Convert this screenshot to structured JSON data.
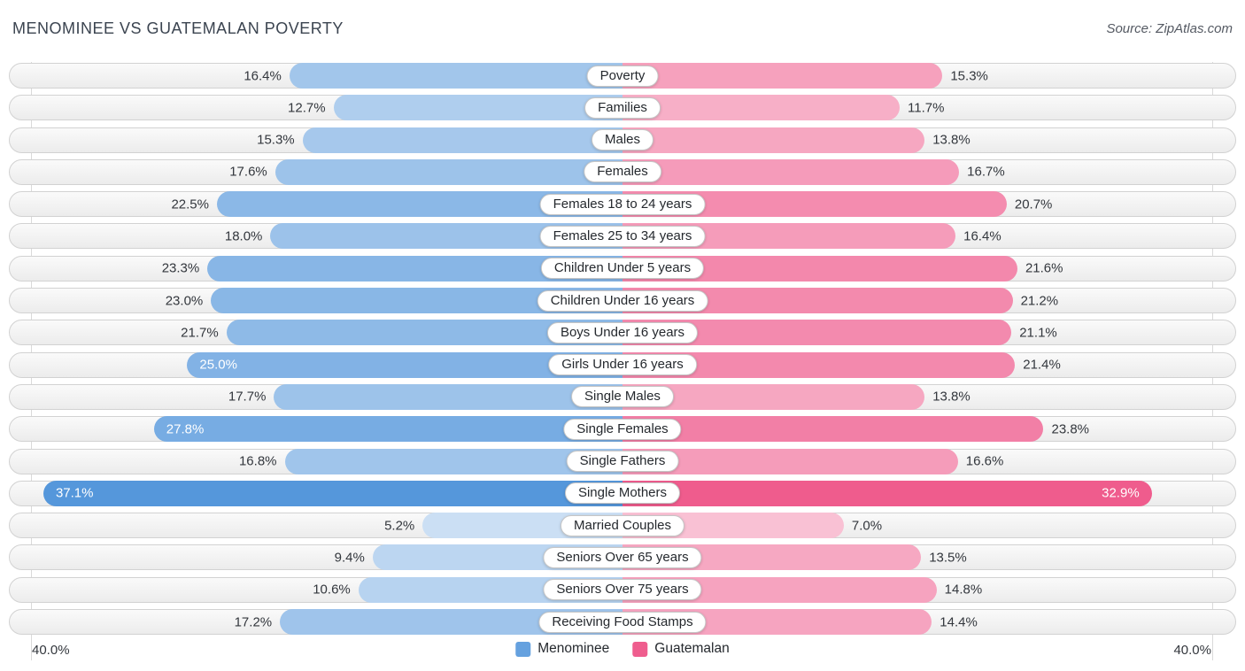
{
  "header": {
    "title": "MENOMINEE VS GUATEMALAN POVERTY",
    "source": "Source: ZipAtlas.com"
  },
  "chart_data": {
    "type": "bar",
    "variant": "bidirectional-tornado",
    "title": "MENOMINEE VS GUATEMALAN POVERTY",
    "value_suffix": "%",
    "axis": {
      "max": 40,
      "left_edge_label": "40.0%",
      "right_edge_label": "40.0%"
    },
    "legend_position": "bottom-center",
    "categories": [
      "Poverty",
      "Families",
      "Males",
      "Females",
      "Females 18 to 24 years",
      "Females 25 to 34 years",
      "Children Under 5 years",
      "Children Under 16 years",
      "Boys Under 16 years",
      "Girls Under 16 years",
      "Single Males",
      "Single Females",
      "Single Fathers",
      "Single Mothers",
      "Married Couples",
      "Seniors Over 65 years",
      "Seniors Over 75 years",
      "Receiving Food Stamps"
    ],
    "series": [
      {
        "name": "Menominee",
        "side": "left",
        "base_color": "#4a90d9",
        "values": [
          16.4,
          12.7,
          15.3,
          17.6,
          22.5,
          18.0,
          23.3,
          23.0,
          21.7,
          25.0,
          17.7,
          27.8,
          16.8,
          37.1,
          5.2,
          9.4,
          10.6,
          17.2
        ]
      },
      {
        "name": "Guatemalan",
        "side": "right",
        "base_color": "#ec407a",
        "values": [
          15.3,
          11.7,
          13.8,
          16.7,
          20.7,
          16.4,
          21.6,
          21.2,
          21.1,
          21.4,
          13.8,
          23.8,
          16.6,
          32.9,
          7.0,
          13.5,
          14.8,
          14.4
        ]
      }
    ],
    "legend": [
      {
        "label": "Menominee",
        "color": "#65a1df"
      },
      {
        "label": "Guatemalan",
        "color": "#ef5d8e"
      }
    ]
  }
}
